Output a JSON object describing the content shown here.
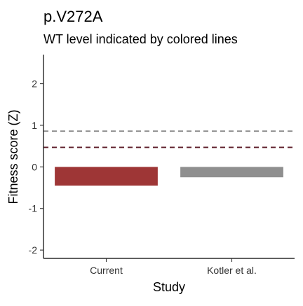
{
  "chart_data": {
    "type": "bar",
    "title": "p.V272A",
    "subtitle": "WT level indicated by colored lines",
    "xlabel": "Study",
    "ylabel": "Fitness score (Z)",
    "categories": [
      "Current",
      "Kotler et al."
    ],
    "values": [
      -0.45,
      -0.25
    ],
    "bar_colors": [
      "#9e3636",
      "#8f8f8f"
    ],
    "ylim": [
      -2.2,
      2.7
    ],
    "yticks": [
      -2,
      -1,
      0,
      1,
      2
    ],
    "ytick_labels": [
      "-2",
      "-1",
      "0",
      "1",
      "2"
    ],
    "reference_lines": [
      {
        "value": 0.86,
        "color": "#808080",
        "style": "dashed"
      },
      {
        "value": 0.47,
        "color": "#5e1d2a",
        "style": "dashed"
      }
    ],
    "grid": false,
    "legend": "none"
  }
}
